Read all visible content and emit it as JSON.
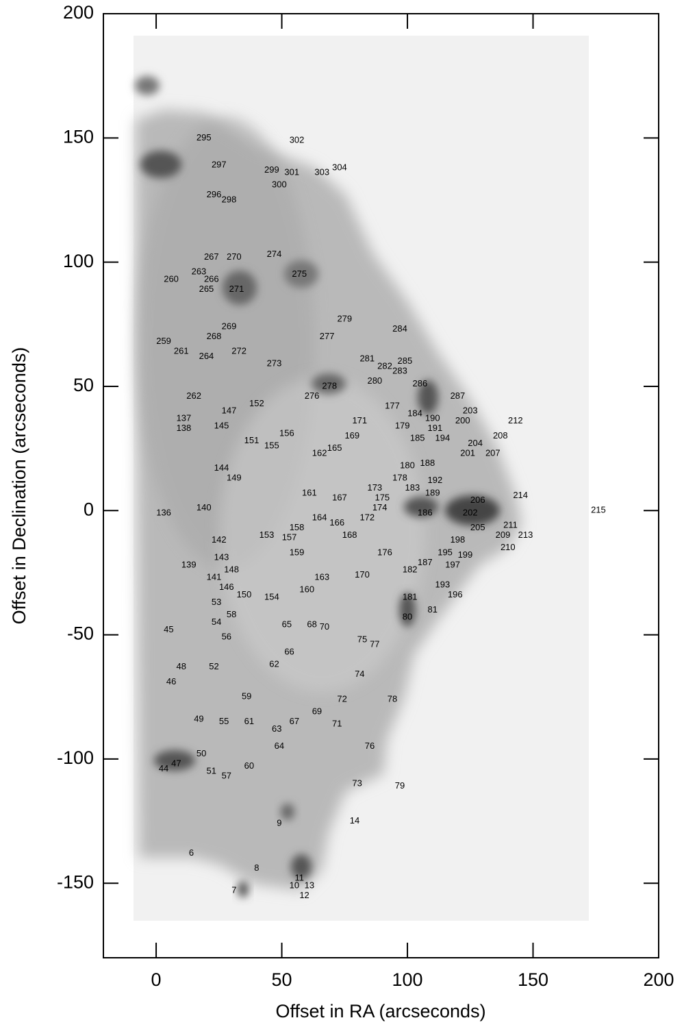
{
  "chart_data": {
    "type": "scatter",
    "x_label": "Offset in RA (arcseconds)",
    "y_label": "Offset in Declination (arcseconds)",
    "xlim": [
      -21,
      200
    ],
    "ylim": [
      -180,
      200
    ],
    "xticks": [
      0,
      50,
      100,
      150,
      200
    ],
    "yticks": [
      -150,
      -100,
      -50,
      0,
      50,
      100,
      150,
      200
    ],
    "series": [
      {
        "color": "#000000",
        "labels": [
          295,
          302,
          297,
          299,
          301,
          303,
          304,
          300,
          296,
          298,
          267,
          270,
          274,
          263,
          260,
          266,
          275,
          265,
          271,
          279,
          284,
          269,
          268,
          277,
          259,
          261,
          272,
          264,
          281,
          282,
          285,
          273,
          283,
          280,
          286,
          278,
          276,
          262,
          287,
          152,
          177,
          147,
          184,
          203,
          137,
          171,
          190,
          212,
          200,
          179,
          191,
          138,
          145,
          156,
          208,
          185,
          194,
          169,
          151,
          155,
          204,
          165,
          162,
          201,
          207,
          180,
          188,
          144,
          178,
          192,
          149,
          173,
          183,
          189,
          161,
          214,
          167,
          175,
          206,
          174,
          140,
          136,
          186,
          202,
          215,
          172,
          164,
          166,
          158,
          211,
          205,
          168,
          153,
          157,
          209,
          213,
          142,
          198,
          210,
          176,
          159,
          195,
          199,
          143,
          187,
          197,
          139,
          182,
          148,
          170,
          141,
          163,
          193,
          146,
          150,
          160,
          154,
          196,
          181,
          53,
          81,
          58,
          80,
          54,
          65,
          68,
          70,
          45,
          56,
          75,
          77,
          66,
          62,
          48,
          52,
          74,
          46,
          59,
          72,
          78,
          69,
          49,
          55,
          61,
          67,
          63,
          71,
          64,
          76,
          50,
          47,
          44,
          60,
          51,
          57,
          73,
          79,
          9,
          14,
          6,
          8,
          11,
          10,
          13,
          7,
          12
        ],
        "x": [
          19,
          56,
          25,
          46,
          54,
          66,
          73,
          49,
          23,
          29,
          22,
          31,
          47,
          17,
          6,
          22,
          57,
          20,
          32,
          75,
          97,
          29,
          23,
          68,
          3,
          10,
          33,
          20,
          84,
          91,
          99,
          47,
          97,
          87,
          105,
          69,
          62,
          15,
          120,
          40,
          94,
          29,
          103,
          125,
          11,
          81,
          110,
          143,
          122,
          98,
          111,
          11,
          26,
          52,
          137,
          104,
          114,
          78,
          38,
          46,
          127,
          71,
          65,
          124,
          134,
          100,
          108,
          26,
          97,
          111,
          31,
          87,
          102,
          110,
          61,
          145,
          73,
          90,
          128,
          89,
          19,
          3,
          107,
          125,
          176,
          84,
          65,
          72,
          56,
          141,
          128,
          77,
          44,
          53,
          138,
          147,
          25,
          120,
          140,
          91,
          56,
          115,
          123,
          26,
          107,
          118,
          13,
          101,
          30,
          82,
          23,
          66,
          114,
          28,
          35,
          60,
          46,
          119,
          101,
          24,
          110,
          30,
          100,
          24,
          52,
          62,
          67,
          5,
          28,
          82,
          87,
          53,
          47,
          10,
          23,
          81,
          6,
          36,
          74,
          94,
          64,
          17,
          27,
          37,
          55,
          48,
          72,
          49,
          85,
          18,
          8,
          3,
          37,
          22,
          28,
          80,
          97,
          49,
          79,
          14,
          40,
          57,
          55,
          61,
          31,
          59
        ],
        "y": [
          150,
          149,
          139,
          137,
          136,
          136,
          138,
          131,
          127,
          125,
          102,
          102,
          103,
          96,
          93,
          93,
          95,
          89,
          89,
          77,
          73,
          74,
          70,
          70,
          68,
          64,
          64,
          62,
          61,
          58,
          60,
          59,
          56,
          52,
          51,
          50,
          46,
          46,
          46,
          43,
          42,
          40,
          39,
          40,
          37,
          36,
          37,
          36,
          36,
          34,
          33,
          33,
          34,
          31,
          30,
          29,
          29,
          30,
          28,
          26,
          27,
          25,
          23,
          23,
          23,
          18,
          19,
          17,
          13,
          12,
          13,
          9,
          9,
          7,
          7,
          6,
          5,
          5,
          4,
          1,
          1,
          -1,
          -1,
          -1,
          0,
          -3,
          -3,
          -5,
          -7,
          -6,
          -7,
          -10,
          -10,
          -11,
          -10,
          -10,
          -12,
          -12,
          -15,
          -17,
          -17,
          -17,
          -18,
          -19,
          -21,
          -22,
          -22,
          -24,
          -24,
          -26,
          -27,
          -27,
          -30,
          -31,
          -34,
          -32,
          -35,
          -34,
          -35,
          -37,
          -40,
          -42,
          -43,
          -45,
          -46,
          -46,
          -47,
          -48,
          -51,
          -52,
          -54,
          -57,
          -62,
          -63,
          -63,
          -66,
          -69,
          -75,
          -76,
          -76,
          -81,
          -84,
          -85,
          -85,
          -85,
          -88,
          -86,
          -95,
          -95,
          -98,
          -102,
          -104,
          -103,
          -105,
          -107,
          -110,
          -111,
          -126,
          -125,
          -138,
          -144,
          -148,
          -151,
          -151,
          -153,
          -155
        ]
      }
    ]
  }
}
